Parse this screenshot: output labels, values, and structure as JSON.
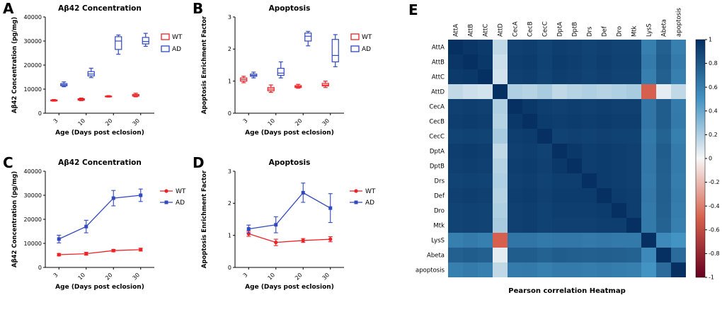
{
  "figure": {
    "background": "#ffffff",
    "panel_letters": [
      "A",
      "B",
      "C",
      "D",
      "E"
    ]
  },
  "colors": {
    "wt": "#EC2227",
    "ad": "#3148BE"
  },
  "chart_data": [
    {
      "panel": "A",
      "type": "box",
      "title": "Aβ42 Concentration",
      "xlabel": "Age (Days post eclosion)",
      "ylabel": "Aβ42 Concentration (pg/mg)",
      "ylim": [
        0,
        40000
      ],
      "yticks": [
        0,
        10000,
        20000,
        30000,
        40000
      ],
      "categories": [
        3,
        10,
        20,
        30
      ],
      "series": [
        {
          "name": "WT",
          "color": "#EC2227",
          "boxes": [
            [
              5000,
              5100,
              5300,
              5500,
              5700
            ],
            [
              5200,
              5400,
              5700,
              6000,
              6300
            ],
            [
              6700,
              6800,
              7000,
              7100,
              7300
            ],
            [
              6800,
              7100,
              7400,
              7800,
              8300
            ]
          ]
        },
        {
          "name": "AD",
          "color": "#3148BE",
          "boxes": [
            [
              11000,
              11400,
              11800,
              12300,
              13000
            ],
            [
              14800,
              15500,
              16300,
              17300,
              18700
            ],
            [
              24500,
              26500,
              30000,
              31800,
              32500
            ],
            [
              27800,
              28800,
              29800,
              31500,
              33200
            ]
          ]
        }
      ]
    },
    {
      "panel": "B",
      "type": "box",
      "title": "Apoptosis",
      "xlabel": "Age (Days post eclosion)",
      "ylabel": "Apoptosis Enrichment Factor",
      "ylim": [
        0,
        3
      ],
      "yticks": [
        0,
        1,
        2,
        3
      ],
      "categories": [
        3,
        10,
        20,
        30
      ],
      "series": [
        {
          "name": "WT",
          "color": "#EC2227",
          "boxes": [
            [
              0.95,
              1.0,
              1.05,
              1.1,
              1.15
            ],
            [
              0.65,
              0.7,
              0.75,
              0.8,
              0.88
            ],
            [
              0.78,
              0.8,
              0.83,
              0.86,
              0.9
            ],
            [
              0.8,
              0.85,
              0.88,
              0.93,
              1.0
            ]
          ]
        },
        {
          "name": "AD",
          "color": "#3148BE",
          "boxes": [
            [
              1.1,
              1.15,
              1.18,
              1.22,
              1.28
            ],
            [
              1.1,
              1.18,
              1.25,
              1.4,
              1.6
            ],
            [
              2.1,
              2.25,
              2.4,
              2.5,
              2.55
            ],
            [
              1.45,
              1.6,
              1.8,
              2.3,
              2.45
            ]
          ]
        }
      ]
    },
    {
      "panel": "C",
      "type": "line",
      "title": "Aβ42 Concentration",
      "xlabel": "Age (Days post eclosion)",
      "ylabel": "Aβ42 Concentration (pg/mg)",
      "ylim": [
        0,
        40000
      ],
      "yticks": [
        0,
        10000,
        20000,
        30000,
        40000
      ],
      "categories": [
        3,
        10,
        20,
        30
      ],
      "series": [
        {
          "name": "WT",
          "color": "#EC2227",
          "marker": "circle",
          "means": [
            5300,
            5700,
            7000,
            7400
          ],
          "errors": [
            500,
            600,
            500,
            600
          ]
        },
        {
          "name": "AD",
          "color": "#3148BE",
          "marker": "square",
          "means": [
            11800,
            17000,
            28800,
            30000
          ],
          "errors": [
            1600,
            2600,
            3200,
            2600
          ]
        }
      ]
    },
    {
      "panel": "D",
      "type": "line",
      "title": "Apoptosis",
      "xlabel": "Age (Days post eclosion)",
      "ylabel": "Apoptosis Enrichment Factor",
      "ylim": [
        0,
        3
      ],
      "yticks": [
        0,
        1,
        2,
        3
      ],
      "categories": [
        3,
        10,
        20,
        30
      ],
      "series": [
        {
          "name": "WT",
          "color": "#EC2227",
          "marker": "circle",
          "means": [
            1.05,
            0.78,
            0.84,
            0.88
          ],
          "errors": [
            0.08,
            0.1,
            0.06,
            0.08
          ]
        },
        {
          "name": "AD",
          "color": "#3148BE",
          "marker": "square",
          "means": [
            1.2,
            1.33,
            2.33,
            1.85
          ],
          "errors": [
            0.12,
            0.25,
            0.3,
            0.45
          ]
        }
      ]
    },
    {
      "panel": "E",
      "type": "heatmap",
      "title": "Pearson correlation Heatmap",
      "labels": [
        "AttA",
        "AttB",
        "AttC",
        "AttD",
        "CecA",
        "CecB",
        "CecC",
        "DptA",
        "DptB",
        "Drs",
        "Def",
        "Dro",
        "Mtk",
        "LysS",
        "Abeta",
        "apoptosis"
      ],
      "colorbar_ticks": [
        1,
        0.8,
        0.6,
        0.4,
        0.2,
        0,
        -0.2,
        -0.4,
        -0.6,
        -0.8,
        -1
      ],
      "vmin": -1,
      "vmax": 1,
      "matrix": [
        [
          1.0,
          0.97,
          0.95,
          0.15,
          0.92,
          0.93,
          0.9,
          0.93,
          0.92,
          0.9,
          0.92,
          0.9,
          0.9,
          0.6,
          0.76,
          0.6
        ],
        [
          0.97,
          1.0,
          0.96,
          0.12,
          0.93,
          0.94,
          0.91,
          0.94,
          0.93,
          0.91,
          0.93,
          0.91,
          0.91,
          0.62,
          0.78,
          0.62
        ],
        [
          0.95,
          0.96,
          1.0,
          0.1,
          0.92,
          0.93,
          0.9,
          0.93,
          0.92,
          0.9,
          0.92,
          0.9,
          0.9,
          0.6,
          0.76,
          0.6
        ],
        [
          0.15,
          0.12,
          0.1,
          1.0,
          0.2,
          0.18,
          0.22,
          0.15,
          0.18,
          0.2,
          0.18,
          0.2,
          0.22,
          -0.5,
          0.05,
          0.15
        ],
        [
          0.92,
          0.93,
          0.92,
          0.2,
          1.0,
          0.96,
          0.93,
          0.92,
          0.93,
          0.92,
          0.93,
          0.92,
          0.92,
          0.65,
          0.78,
          0.62
        ],
        [
          0.93,
          0.94,
          0.93,
          0.18,
          0.96,
          1.0,
          0.94,
          0.93,
          0.94,
          0.93,
          0.94,
          0.93,
          0.93,
          0.65,
          0.78,
          0.63
        ],
        [
          0.9,
          0.91,
          0.9,
          0.22,
          0.93,
          0.94,
          1.0,
          0.91,
          0.92,
          0.91,
          0.92,
          0.91,
          0.91,
          0.63,
          0.75,
          0.6
        ],
        [
          0.93,
          0.94,
          0.93,
          0.15,
          0.92,
          0.93,
          0.91,
          1.0,
          0.96,
          0.93,
          0.94,
          0.93,
          0.92,
          0.64,
          0.78,
          0.62
        ],
        [
          0.92,
          0.93,
          0.92,
          0.18,
          0.93,
          0.94,
          0.92,
          0.96,
          1.0,
          0.93,
          0.94,
          0.93,
          0.92,
          0.64,
          0.77,
          0.62
        ],
        [
          0.9,
          0.91,
          0.9,
          0.2,
          0.92,
          0.93,
          0.91,
          0.93,
          0.93,
          1.0,
          0.94,
          0.93,
          0.92,
          0.63,
          0.76,
          0.61
        ],
        [
          0.92,
          0.93,
          0.92,
          0.18,
          0.93,
          0.94,
          0.92,
          0.94,
          0.94,
          0.94,
          1.0,
          0.94,
          0.93,
          0.64,
          0.77,
          0.62
        ],
        [
          0.9,
          0.91,
          0.9,
          0.2,
          0.92,
          0.93,
          0.91,
          0.93,
          0.93,
          0.93,
          0.94,
          1.0,
          0.93,
          0.63,
          0.76,
          0.61
        ],
        [
          0.9,
          0.91,
          0.9,
          0.22,
          0.92,
          0.93,
          0.91,
          0.92,
          0.92,
          0.92,
          0.93,
          0.93,
          1.0,
          0.63,
          0.75,
          0.6
        ],
        [
          0.6,
          0.62,
          0.6,
          -0.5,
          0.65,
          0.65,
          0.63,
          0.64,
          0.64,
          0.63,
          0.64,
          0.63,
          0.63,
          1.0,
          0.55,
          0.5
        ],
        [
          0.76,
          0.78,
          0.76,
          0.05,
          0.78,
          0.78,
          0.75,
          0.78,
          0.77,
          0.76,
          0.77,
          0.76,
          0.75,
          0.55,
          1.0,
          0.7
        ],
        [
          0.6,
          0.62,
          0.6,
          0.15,
          0.62,
          0.63,
          0.6,
          0.62,
          0.62,
          0.61,
          0.62,
          0.61,
          0.6,
          0.5,
          0.7,
          1.0
        ]
      ]
    }
  ]
}
